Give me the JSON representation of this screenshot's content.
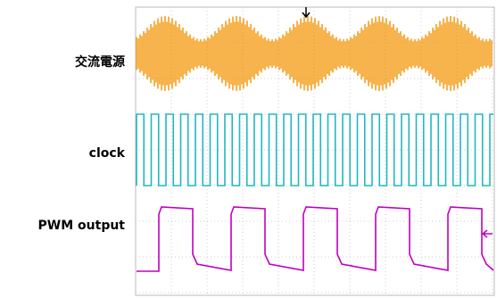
{
  "signals": [
    {
      "label": "交流電源"
    },
    {
      "label": "clock"
    },
    {
      "label": "PWM output"
    }
  ]
}
